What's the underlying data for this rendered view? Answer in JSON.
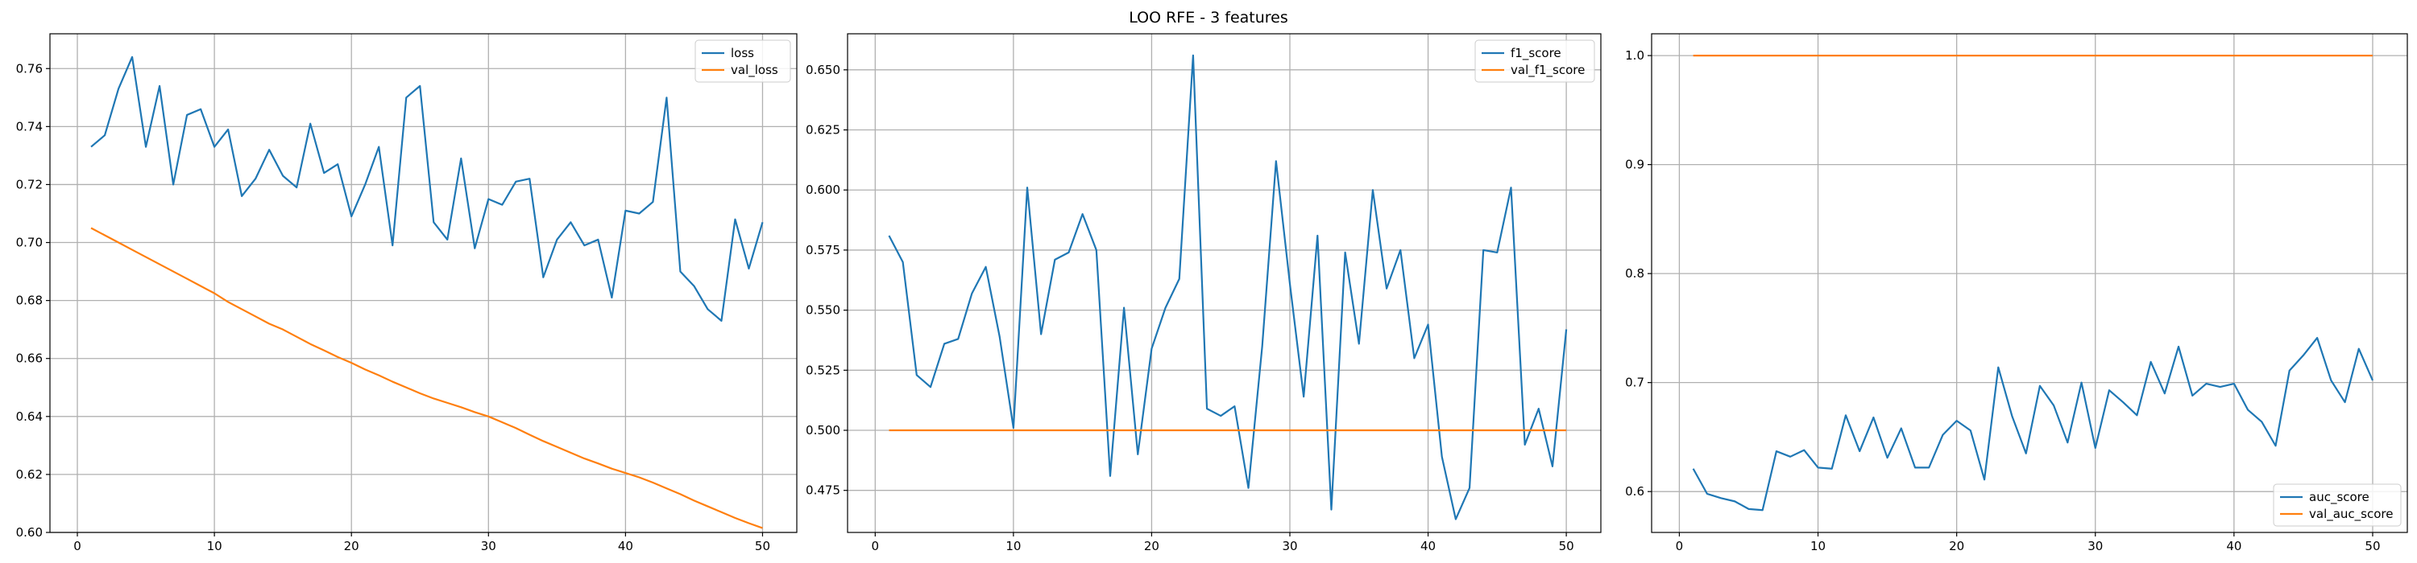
{
  "title": "LOO RFE - 3 features",
  "colors": {
    "blue": "#1f77b4",
    "orange": "#ff7f0e",
    "grid": "#b0b0b0"
  },
  "chart_data": [
    {
      "type": "line",
      "grid": true,
      "legend_position": "top-right",
      "xlim": [
        -2,
        52.5
      ],
      "ylim": [
        0.6,
        0.772
      ],
      "xticks": [
        0,
        10,
        20,
        30,
        40,
        50
      ],
      "yticks": [
        0.6,
        0.62,
        0.64,
        0.66,
        0.68,
        0.7,
        0.72,
        0.74,
        0.76
      ],
      "ytick_decimals": 2,
      "x": [
        1,
        2,
        3,
        4,
        5,
        6,
        7,
        8,
        9,
        10,
        11,
        12,
        13,
        14,
        15,
        16,
        17,
        18,
        19,
        20,
        21,
        22,
        23,
        24,
        25,
        26,
        27,
        28,
        29,
        30,
        31,
        32,
        33,
        34,
        35,
        36,
        37,
        38,
        39,
        40,
        41,
        42,
        43,
        44,
        45,
        46,
        47,
        48,
        49,
        50
      ],
      "series": [
        {
          "name": "loss",
          "color": "#1f77b4",
          "values": [
            0.733,
            0.737,
            0.753,
            0.764,
            0.733,
            0.754,
            0.72,
            0.744,
            0.746,
            0.733,
            0.739,
            0.716,
            0.722,
            0.732,
            0.723,
            0.719,
            0.741,
            0.724,
            0.727,
            0.709,
            0.72,
            0.733,
            0.699,
            0.75,
            0.754,
            0.707,
            0.701,
            0.729,
            0.698,
            0.715,
            0.713,
            0.721,
            0.722,
            0.688,
            0.701,
            0.707,
            0.699,
            0.701,
            0.681,
            0.711,
            0.71,
            0.714,
            0.75,
            0.69,
            0.685,
            0.677,
            0.673,
            0.708,
            0.691,
            0.707
          ]
        },
        {
          "name": "val_loss",
          "color": "#ff7f0e",
          "values": [
            0.705,
            0.7025,
            0.7,
            0.6975,
            0.695,
            0.6925,
            0.69,
            0.6875,
            0.685,
            0.6825,
            0.6795,
            0.677,
            0.6745,
            0.672,
            0.67,
            0.6675,
            0.665,
            0.6628,
            0.6605,
            0.6585,
            0.6562,
            0.6542,
            0.652,
            0.65,
            0.648,
            0.6462,
            0.6447,
            0.6432,
            0.6415,
            0.64,
            0.638,
            0.636,
            0.6337,
            0.6315,
            0.6295,
            0.6275,
            0.6255,
            0.6238,
            0.622,
            0.6205,
            0.619,
            0.6172,
            0.6152,
            0.6132,
            0.611,
            0.609,
            0.607,
            0.605,
            0.6032,
            0.6015
          ]
        }
      ]
    },
    {
      "type": "line",
      "grid": true,
      "legend_position": "top-right",
      "xlim": [
        -2,
        52.5
      ],
      "ylim": [
        0.4575,
        0.665
      ],
      "xticks": [
        0,
        10,
        20,
        30,
        40,
        50
      ],
      "yticks": [
        0.475,
        0.5,
        0.525,
        0.55,
        0.575,
        0.6,
        0.625,
        0.65
      ],
      "ytick_decimals": 3,
      "x": [
        1,
        2,
        3,
        4,
        5,
        6,
        7,
        8,
        9,
        10,
        11,
        12,
        13,
        14,
        15,
        16,
        17,
        18,
        19,
        20,
        21,
        22,
        23,
        24,
        25,
        26,
        27,
        28,
        29,
        30,
        31,
        32,
        33,
        34,
        35,
        36,
        37,
        38,
        39,
        40,
        41,
        42,
        43,
        44,
        45,
        46,
        47,
        48,
        49,
        50
      ],
      "series": [
        {
          "name": "f1_score",
          "color": "#1f77b4",
          "values": [
            0.581,
            0.57,
            0.523,
            0.518,
            0.536,
            0.538,
            0.557,
            0.568,
            0.539,
            0.501,
            0.601,
            0.54,
            0.571,
            0.574,
            0.59,
            0.575,
            0.481,
            0.551,
            0.49,
            0.534,
            0.551,
            0.563,
            0.656,
            0.509,
            0.506,
            0.51,
            0.476,
            0.535,
            0.612,
            0.561,
            0.514,
            0.581,
            0.467,
            0.574,
            0.536,
            0.6,
            0.559,
            0.575,
            0.53,
            0.544,
            0.489,
            0.463,
            0.476,
            0.575,
            0.574,
            0.601,
            0.494,
            0.509,
            0.485,
            0.542
          ]
        },
        {
          "name": "val_f1_score",
          "color": "#ff7f0e",
          "values": [
            0.5,
            0.5,
            0.5,
            0.5,
            0.5,
            0.5,
            0.5,
            0.5,
            0.5,
            0.5,
            0.5,
            0.5,
            0.5,
            0.5,
            0.5,
            0.5,
            0.5,
            0.5,
            0.5,
            0.5,
            0.5,
            0.5,
            0.5,
            0.5,
            0.5,
            0.5,
            0.5,
            0.5,
            0.5,
            0.5,
            0.5,
            0.5,
            0.5,
            0.5,
            0.5,
            0.5,
            0.5,
            0.5,
            0.5,
            0.5,
            0.5,
            0.5,
            0.5,
            0.5,
            0.5,
            0.5,
            0.5,
            0.5,
            0.5,
            0.5
          ]
        }
      ]
    },
    {
      "type": "line",
      "grid": true,
      "legend_position": "bottom-right",
      "xlim": [
        -2,
        52.5
      ],
      "ylim": [
        0.5625,
        1.02
      ],
      "xticks": [
        0,
        10,
        20,
        30,
        40,
        50
      ],
      "yticks": [
        0.6,
        0.7,
        0.8,
        0.9,
        1.0
      ],
      "ytick_decimals": 1,
      "x": [
        1,
        2,
        3,
        4,
        5,
        6,
        7,
        8,
        9,
        10,
        11,
        12,
        13,
        14,
        15,
        16,
        17,
        18,
        19,
        20,
        21,
        22,
        23,
        24,
        25,
        26,
        27,
        28,
        29,
        30,
        31,
        32,
        33,
        34,
        35,
        36,
        37,
        38,
        39,
        40,
        41,
        42,
        43,
        44,
        45,
        46,
        47,
        48,
        49,
        50
      ],
      "series": [
        {
          "name": "auc_score",
          "color": "#1f77b4",
          "values": [
            0.621,
            0.598,
            0.594,
            0.591,
            0.584,
            0.583,
            0.637,
            0.632,
            0.638,
            0.622,
            0.621,
            0.67,
            0.637,
            0.668,
            0.631,
            0.658,
            0.622,
            0.622,
            0.652,
            0.665,
            0.656,
            0.611,
            0.714,
            0.669,
            0.635,
            0.697,
            0.679,
            0.645,
            0.7,
            0.64,
            0.693,
            0.682,
            0.67,
            0.719,
            0.69,
            0.733,
            0.688,
            0.699,
            0.696,
            0.699,
            0.675,
            0.664,
            0.642,
            0.711,
            0.725,
            0.741,
            0.702,
            0.682,
            0.731,
            0.702
          ]
        },
        {
          "name": "val_auc_score",
          "color": "#ff7f0e",
          "values": [
            1,
            1,
            1,
            1,
            1,
            1,
            1,
            1,
            1,
            1,
            1,
            1,
            1,
            1,
            1,
            1,
            1,
            1,
            1,
            1,
            1,
            1,
            1,
            1,
            1,
            1,
            1,
            1,
            1,
            1,
            1,
            1,
            1,
            1,
            1,
            1,
            1,
            1,
            1,
            1,
            1,
            1,
            1,
            1,
            1,
            1,
            1,
            1,
            1,
            1
          ]
        }
      ]
    }
  ]
}
